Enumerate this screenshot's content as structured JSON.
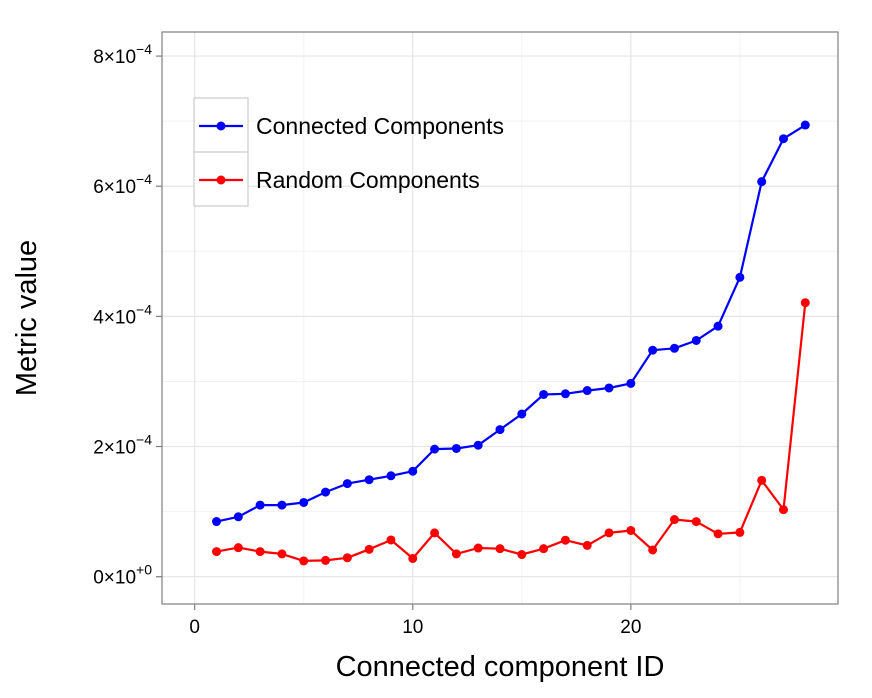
{
  "chart_data": {
    "type": "line",
    "xlabel": "Connected component ID",
    "ylabel": "Metric value",
    "xlim": [
      -1.5,
      29.5
    ],
    "ylim": [
      -4.2e-05,
      0.000837
    ],
    "x_ticks": [
      0,
      10,
      20
    ],
    "x_tick_labels": [
      "0",
      "10",
      "20"
    ],
    "y_ticks": [
      0,
      0.0002,
      0.0004,
      0.0006,
      0.0008
    ],
    "y_tick_labels": [
      {
        "mantissa": "0",
        "exponent": "+0"
      },
      {
        "mantissa": "2",
        "exponent": "−4"
      },
      {
        "mantissa": "4",
        "exponent": "−4"
      },
      {
        "mantissa": "6",
        "exponent": "−4"
      },
      {
        "mantissa": "8",
        "exponent": "−4"
      }
    ],
    "grid": true,
    "legend_position": "top-left",
    "x": [
      1,
      2,
      3,
      4,
      5,
      6,
      7,
      8,
      9,
      10,
      11,
      12,
      13,
      14,
      15,
      16,
      17,
      18,
      19,
      20,
      21,
      22,
      23,
      24,
      25,
      26,
      27,
      28
    ],
    "series": [
      {
        "name": "Connected Components",
        "color": "#0000ff",
        "values": [
          8.47e-05,
          9.2e-05,
          0.00011,
          0.00011,
          0.000114,
          0.00013,
          0.000143,
          0.000149,
          0.000155,
          0.000162,
          0.000196,
          0.000197,
          0.000202,
          0.000226,
          0.00025,
          0.00028,
          0.000281,
          0.000286,
          0.00029,
          0.000297,
          0.000348,
          0.000351,
          0.000363,
          0.000385,
          0.00046,
          0.000607,
          0.000673,
          0.000694
        ]
      },
      {
        "name": "Random Components",
        "color": "#ff0000",
        "values": [
          3.85e-05,
          4.46e-05,
          3.85e-05,
          3.5e-05,
          2.42e-05,
          2.5e-05,
          2.9e-05,
          4.2e-05,
          5.64e-05,
          2.8e-05,
          6.73e-05,
          3.5e-05,
          4.4e-05,
          4.3e-05,
          3.4e-05,
          4.3e-05,
          5.6e-05,
          4.8e-05,
          6.73e-05,
          7.1e-05,
          4.1e-05,
          8.78e-05,
          8.46e-05,
          6.58e-05,
          6.8e-05,
          0.000148,
          0.000103,
          0.000421
        ]
      }
    ]
  }
}
